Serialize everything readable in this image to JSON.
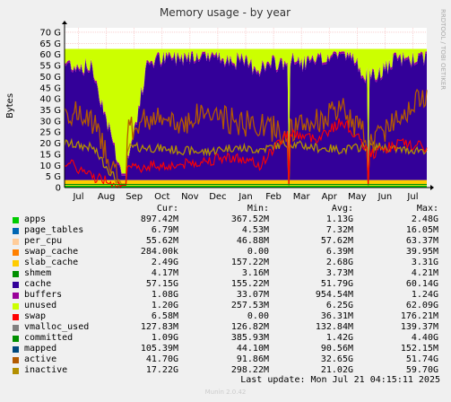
{
  "chart_data": {
    "type": "area",
    "title": "Memory usage - by year",
    "ylabel": "Bytes",
    "ylim": [
      0,
      72
    ],
    "y_ticks": [
      "0",
      "5 G",
      "10 G",
      "15 G",
      "20 G",
      "25 G",
      "30 G",
      "35 G",
      "40 G",
      "45 G",
      "50 G",
      "55 G",
      "60 G",
      "65 G",
      "70 G"
    ],
    "x_ticks": [
      "Jul",
      "Aug",
      "Sep",
      "Oct",
      "Nov",
      "Dec",
      "Jan",
      "Feb",
      "Mar",
      "Apr",
      "May",
      "Jun",
      "Jul"
    ],
    "x_tick_positions": [
      0.5,
      1.5,
      2.5,
      3.5,
      4.5,
      5.5,
      6.5,
      7.5,
      8.5,
      9.5,
      10.5,
      11.5,
      12.5
    ],
    "x_range": [
      0,
      13
    ],
    "grid": true,
    "stack_top_total_gb": 62.5,
    "approx_series_gb": {
      "months": [
        0,
        1,
        2,
        2.3,
        3,
        4,
        5,
        6,
        7,
        8,
        9,
        10,
        11,
        12,
        13
      ],
      "cache": [
        52,
        50,
        5,
        10,
        53,
        55,
        57,
        54,
        50,
        53,
        52,
        58,
        45,
        54,
        55
      ],
      "active": [
        35,
        30,
        2,
        25,
        32,
        28,
        34,
        30,
        28,
        25,
        30,
        35,
        20,
        33,
        42
      ],
      "swap": [
        12,
        5,
        2,
        8,
        10,
        10,
        12,
        14,
        10,
        25,
        22,
        30,
        15,
        20,
        18
      ],
      "inactive": [
        20,
        18,
        1,
        18,
        18,
        17,
        16,
        18,
        17,
        20,
        18,
        17,
        19,
        17,
        17
      ]
    }
  },
  "legend": {
    "headers": {
      "cur": "Cur:",
      "min": "Min:",
      "avg": "Avg:",
      "max": "Max:"
    },
    "rows": [
      {
        "name": "apps",
        "color": "#00cc00",
        "cur": "897.42M",
        "min": "367.52M",
        "avg": "1.13G",
        "max": "2.48G"
      },
      {
        "name": "page_tables",
        "color": "#0066b3",
        "cur": "6.79M",
        "min": "4.53M",
        "avg": "7.32M",
        "max": "16.05M"
      },
      {
        "name": "per_cpu",
        "color": "#ffcc99",
        "cur": "55.62M",
        "min": "46.88M",
        "avg": "57.62M",
        "max": "63.37M"
      },
      {
        "name": "swap_cache",
        "color": "#ff8000",
        "cur": "284.00k",
        "min": "0.00",
        "avg": "6.39M",
        "max": "39.95M"
      },
      {
        "name": "slab_cache",
        "color": "#ffcc00",
        "cur": "2.49G",
        "min": "157.22M",
        "avg": "2.68G",
        "max": "3.31G"
      },
      {
        "name": "shmem",
        "color": "#008f00",
        "cur": "4.17M",
        "min": "3.16M",
        "avg": "3.73M",
        "max": "4.21M"
      },
      {
        "name": "cache",
        "color": "#330099",
        "cur": "57.15G",
        "min": "155.22M",
        "avg": "51.79G",
        "max": "60.14G"
      },
      {
        "name": "buffers",
        "color": "#990099",
        "cur": "1.08G",
        "min": "33.07M",
        "avg": "954.54M",
        "max": "1.24G"
      },
      {
        "name": "unused",
        "color": "#ccff00",
        "cur": "1.20G",
        "min": "257.53M",
        "avg": "6.25G",
        "max": "62.09G"
      },
      {
        "name": "swap",
        "color": "#ff0000",
        "cur": "6.58M",
        "min": "0.00",
        "avg": "36.31M",
        "max": "176.21M"
      },
      {
        "name": "vmalloc_used",
        "color": "#808080",
        "cur": "127.83M",
        "min": "126.82M",
        "avg": "132.84M",
        "max": "139.37M"
      },
      {
        "name": "committed",
        "color": "#008f00",
        "cur": "1.09G",
        "min": "385.93M",
        "avg": "1.42G",
        "max": "4.40G"
      },
      {
        "name": "mapped",
        "color": "#00487d",
        "cur": "105.39M",
        "min": "44.10M",
        "avg": "90.56M",
        "max": "152.15M"
      },
      {
        "name": "active",
        "color": "#b35a00",
        "cur": "41.70G",
        "min": "91.86M",
        "avg": "32.65G",
        "max": "51.74G"
      },
      {
        "name": "inactive",
        "color": "#b38f00",
        "cur": "17.22G",
        "min": "298.22M",
        "avg": "21.02G",
        "max": "59.70G"
      }
    ]
  },
  "footer": {
    "last_update": "Last update: Mon Jul 21 04:15:11 2025",
    "version": "Munin 2.0.42",
    "watermark": "RRDTOOL / TOBI OETIKER"
  }
}
